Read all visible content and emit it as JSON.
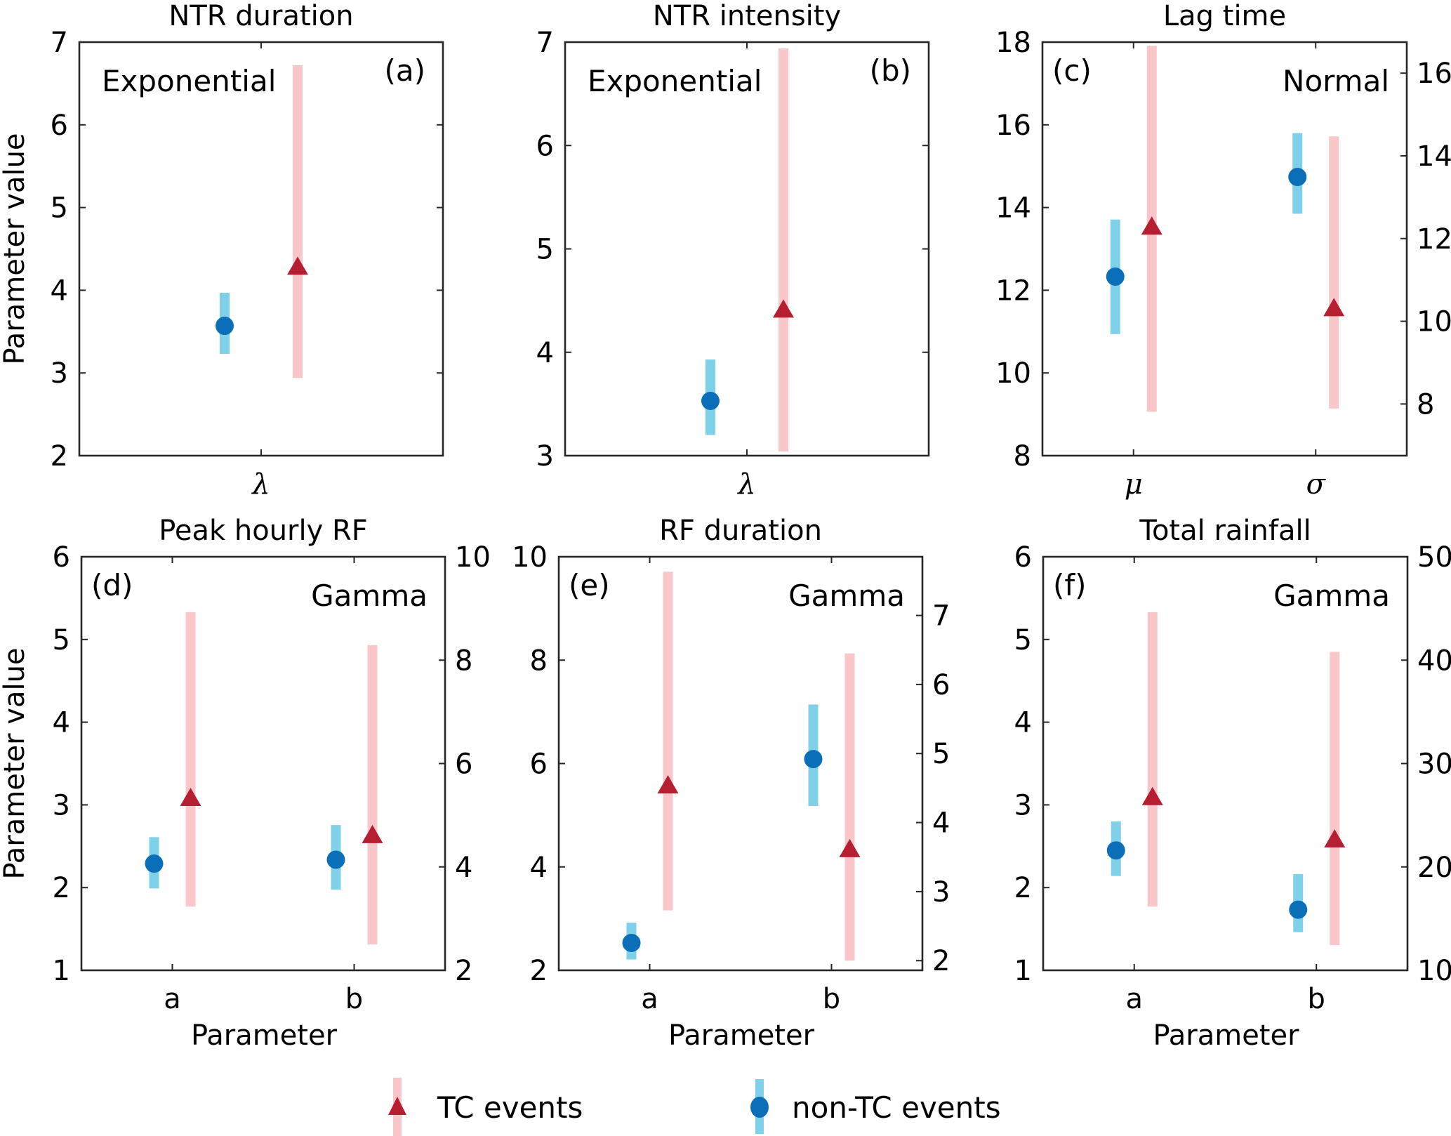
{
  "colors": {
    "tc_range": "#f9c6c9",
    "tc_marker": "#b51f31",
    "nontc_range": "#7fd1ea",
    "nontc_marker": "#0b6eb8",
    "axis": "#262626"
  },
  "legend": {
    "position": "bottom-center",
    "items": [
      {
        "key": "tc",
        "label": "TC events",
        "marker": "triangle"
      },
      {
        "key": "nontc",
        "label": "non-TC events",
        "marker": "circle"
      }
    ]
  },
  "chart_data": [
    {
      "id": "a",
      "type": "scatter",
      "title": "NTR duration",
      "panel_label": "(a)",
      "distribution": "Exponential",
      "distribution_position": "top-left",
      "panel_label_position": "top-right",
      "ylabel": "Parameter value",
      "xlabel": "",
      "categories": [
        "λ"
      ],
      "categories_greek": true,
      "ylim": [
        2,
        7
      ],
      "yticks": [
        2,
        3,
        4,
        5,
        6,
        7
      ],
      "right_axis": null,
      "series": [
        {
          "name": "non-TC events",
          "key": "nontc",
          "points": [
            {
              "category": "λ",
              "axis": "left",
              "value": 3.57,
              "low": 3.23,
              "high": 3.97
            }
          ]
        },
        {
          "name": "TC events",
          "key": "tc",
          "points": [
            {
              "category": "λ",
              "axis": "left",
              "value": 4.28,
              "low": 2.94,
              "high": 6.72
            }
          ]
        }
      ]
    },
    {
      "id": "b",
      "type": "scatter",
      "title": "NTR intensity",
      "panel_label": "(b)",
      "distribution": "Exponential",
      "distribution_position": "top-left",
      "panel_label_position": "top-right",
      "ylabel": "",
      "xlabel": "",
      "categories": [
        "λ"
      ],
      "categories_greek": true,
      "ylim": [
        3,
        7
      ],
      "yticks": [
        3,
        4,
        5,
        6,
        7
      ],
      "right_axis": null,
      "series": [
        {
          "name": "non-TC events",
          "key": "nontc",
          "points": [
            {
              "category": "λ",
              "axis": "left",
              "value": 3.53,
              "low": 3.2,
              "high": 3.93
            }
          ]
        },
        {
          "name": "TC events",
          "key": "tc",
          "points": [
            {
              "category": "λ",
              "axis": "left",
              "value": 4.41,
              "low": 3.04,
              "high": 6.94
            }
          ]
        }
      ]
    },
    {
      "id": "c",
      "type": "scatter",
      "title": "Lag time",
      "panel_label": "(c)",
      "distribution": "Normal",
      "distribution_position": "top-right",
      "panel_label_position": "top-left",
      "ylabel": "",
      "xlabel": "",
      "categories": [
        "μ",
        "σ"
      ],
      "categories_greek": true,
      "ylim": [
        8,
        18
      ],
      "yticks": [
        8,
        10,
        12,
        14,
        16,
        18
      ],
      "right_axis": {
        "ylim": [
          6.75,
          16.75
        ],
        "yticks": [
          8,
          10,
          12,
          14,
          16
        ]
      },
      "series": [
        {
          "name": "non-TC events",
          "key": "nontc",
          "points": [
            {
              "category": "μ",
              "axis": "left",
              "value": 12.33,
              "low": 10.94,
              "high": 13.71
            },
            {
              "category": "σ",
              "axis": "right",
              "value": 13.49,
              "low": 12.6,
              "high": 14.55
            }
          ]
        },
        {
          "name": "TC events",
          "key": "tc",
          "points": [
            {
              "category": "μ",
              "axis": "left",
              "value": 13.53,
              "low": 9.06,
              "high": 17.91
            },
            {
              "category": "σ",
              "axis": "right",
              "value": 10.31,
              "low": 7.89,
              "high": 14.47
            }
          ]
        }
      ]
    },
    {
      "id": "d",
      "type": "scatter",
      "title": "Peak hourly RF",
      "panel_label": "(d)",
      "distribution": "Gamma",
      "distribution_position": "top-right",
      "panel_label_position": "top-left",
      "ylabel": "Parameter value",
      "xlabel": "Parameter",
      "categories": [
        "a",
        "b"
      ],
      "categories_greek": false,
      "ylim": [
        1,
        6
      ],
      "yticks": [
        1,
        2,
        3,
        4,
        5,
        6
      ],
      "right_axis": {
        "ylim": [
          2,
          10
        ],
        "yticks": [
          2,
          4,
          6,
          8,
          10
        ]
      },
      "series": [
        {
          "name": "non-TC events",
          "key": "nontc",
          "points": [
            {
              "category": "a",
              "axis": "left",
              "value": 2.29,
              "low": 1.99,
              "high": 2.61
            },
            {
              "category": "b",
              "axis": "right",
              "value": 4.14,
              "low": 3.56,
              "high": 4.81
            }
          ]
        },
        {
          "name": "TC events",
          "key": "tc",
          "points": [
            {
              "category": "a",
              "axis": "left",
              "value": 3.08,
              "low": 1.77,
              "high": 5.33
            },
            {
              "category": "b",
              "axis": "right",
              "value": 4.61,
              "low": 2.5,
              "high": 8.29
            }
          ]
        }
      ]
    },
    {
      "id": "e",
      "type": "scatter",
      "title": "RF duration",
      "panel_label": "(e)",
      "distribution": "Gamma",
      "distribution_position": "top-right",
      "panel_label_position": "top-left",
      "ylabel": "",
      "xlabel": "Parameter",
      "categories": [
        "a",
        "b"
      ],
      "categories_greek": false,
      "ylim": [
        2,
        10
      ],
      "yticks": [
        2,
        4,
        6,
        8,
        10
      ],
      "right_axis": {
        "ylim": [
          1.86,
          7.85
        ],
        "yticks": [
          2,
          3,
          4,
          5,
          6,
          7
        ]
      },
      "series": [
        {
          "name": "non-TC events",
          "key": "nontc",
          "points": [
            {
              "category": "a",
              "axis": "left",
              "value": 2.53,
              "low": 2.21,
              "high": 2.92
            },
            {
              "category": "b",
              "axis": "right",
              "value": 4.92,
              "low": 4.24,
              "high": 5.71
            }
          ]
        },
        {
          "name": "TC events",
          "key": "tc",
          "points": [
            {
              "category": "a",
              "axis": "left",
              "value": 5.57,
              "low": 3.16,
              "high": 9.71
            },
            {
              "category": "b",
              "axis": "right",
              "value": 3.61,
              "low": 2.0,
              "high": 6.45
            }
          ]
        }
      ]
    },
    {
      "id": "f",
      "type": "scatter",
      "title": "Total rainfall",
      "panel_label": "(f)",
      "distribution": "Gamma",
      "distribution_position": "top-right",
      "panel_label_position": "top-left",
      "ylabel": "",
      "xlabel": "Parameter",
      "categories": [
        "a",
        "b"
      ],
      "categories_greek": false,
      "ylim": [
        1,
        6
      ],
      "yticks": [
        1,
        2,
        3,
        4,
        5,
        6
      ],
      "right_axis": {
        "ylim": [
          10,
          50
        ],
        "yticks": [
          10,
          20,
          30,
          40,
          50
        ]
      },
      "series": [
        {
          "name": "non-TC events",
          "key": "nontc",
          "points": [
            {
              "category": "a",
              "axis": "left",
              "value": 2.45,
              "low": 2.14,
              "high": 2.8
            },
            {
              "category": "b",
              "axis": "right",
              "value": 15.87,
              "low": 13.69,
              "high": 19.3
            }
          ]
        },
        {
          "name": "TC events",
          "key": "tc",
          "points": [
            {
              "category": "a",
              "axis": "left",
              "value": 3.09,
              "low": 1.77,
              "high": 5.33
            },
            {
              "category": "b",
              "axis": "right",
              "value": 22.63,
              "low": 12.44,
              "high": 40.8
            }
          ]
        }
      ]
    }
  ]
}
